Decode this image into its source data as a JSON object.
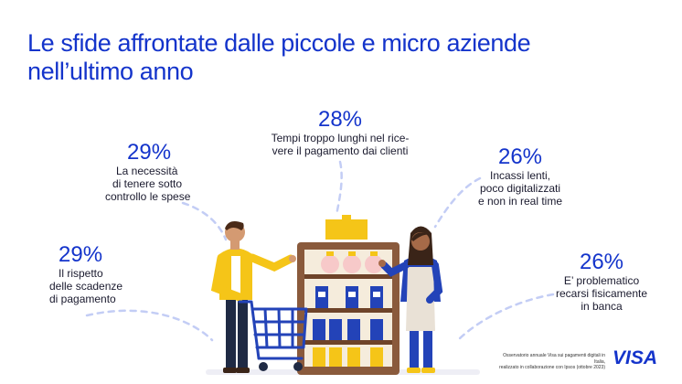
{
  "title": {
    "line1": "Le sfide affrontate dalle piccole e micro aziende",
    "line2": "nell’ultimo anno"
  },
  "stats": [
    {
      "percent": "29%",
      "lines": [
        "Il rispetto",
        "delle scadenze",
        "di pagamento"
      ]
    },
    {
      "percent": "29%",
      "lines": [
        "La necessità",
        "di tenere sotto",
        "controllo le spese"
      ]
    },
    {
      "percent": "28%",
      "lines": [
        "Tempi troppo lunghi nel rice-",
        "vere il pagamento dai clienti"
      ]
    },
    {
      "percent": "26%",
      "lines": [
        "Incassi lenti,",
        "poco digitalizzati",
        "e non in real time"
      ]
    },
    {
      "percent": "26%",
      "lines": [
        "E’ problematico",
        "recarsi fisicamente",
        "in banca"
      ]
    }
  ],
  "footnote": {
    "line1": "Osservatorio annuale Visa sui pagamenti digitali in Italia,",
    "line2": "realizzato in collaborazione con Ipsos (ottobre 2023)"
  },
  "logo": "VISA",
  "colors": {
    "brand_blue": "#1434cb",
    "dash_blue": "#c3cdf5",
    "shelf_brown": "#8a5a3c",
    "accent_yellow": "#f5c518"
  }
}
